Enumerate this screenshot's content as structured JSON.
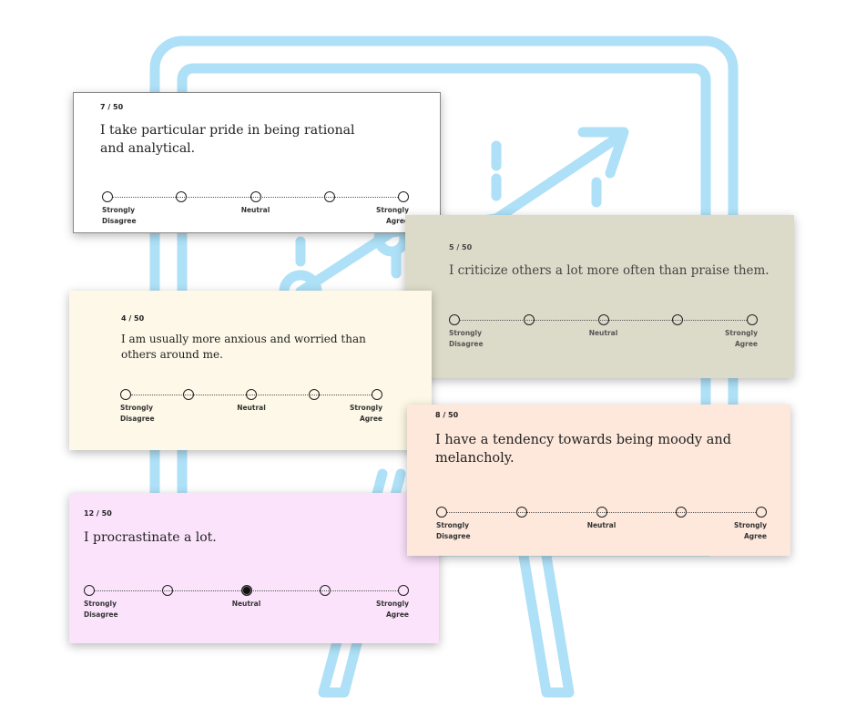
{
  "colors": {
    "easel": "#aee0f7",
    "ink": "#222222"
  },
  "scale_labels": {
    "left": "Strongly\nDisagree",
    "middle": "Neutral",
    "right": "Strongly\nAgree"
  },
  "cards": [
    {
      "id": "q7",
      "counter": "7 / 50",
      "question": "I take particular pride in being rational and analytical.",
      "background": "#ffffff",
      "selected": null
    },
    {
      "id": "q5",
      "counter": "5 / 50",
      "question": "I criticize others a lot more often than praise them.",
      "background": "#dcdbc9",
      "selected": null
    },
    {
      "id": "q4",
      "counter": "4 / 50",
      "question": "I am usually more anxious and worried than others around me.",
      "background": "#fdf8e7",
      "selected": null
    },
    {
      "id": "q12",
      "counter": "12 / 50",
      "question": "I procrastinate a lot.",
      "background": "#fbe3fb",
      "selected": 3
    },
    {
      "id": "q8",
      "counter": "8 / 50",
      "question": "I have a tendency towards being moody and melancholy.",
      "background": "#fde8db",
      "selected": null
    }
  ]
}
